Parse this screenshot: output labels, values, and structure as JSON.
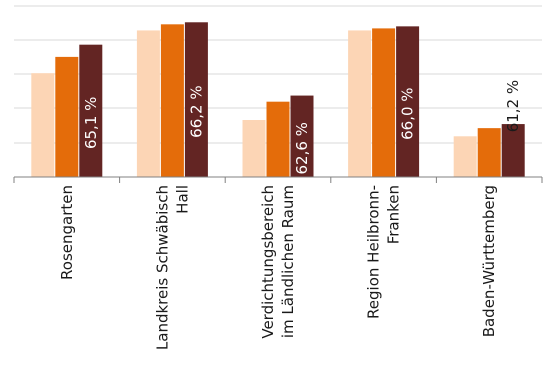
{
  "caption": "",
  "chart_data": {
    "type": "bar",
    "categories": [
      "Rosengarten",
      "Landkreis Schwäbisch Hall",
      "Verdichtungsbereich im Ländlichen Raum",
      "Region Heilbronn-Franken",
      "Baden-Württemberg"
    ],
    "category_lines": [
      [
        "Rosengarten"
      ],
      [
        "Landkreis Schwäbisch",
        "Hall"
      ],
      [
        "Verdichtungsbereich",
        "im Ländlichen Raum"
      ],
      [
        "Region Heilbronn-",
        "Franken"
      ],
      [
        "Baden-Württemberg"
      ]
    ],
    "series": [
      {
        "values": [
          63.7,
          65.8,
          61.4,
          65.8,
          60.6
        ],
        "color": "#fcd5b5"
      },
      {
        "values": [
          64.5,
          66.1,
          62.3,
          65.9,
          61.0
        ],
        "color": "#e46c0a"
      },
      {
        "values": [
          65.1,
          66.2,
          62.6,
          66.0,
          61.2
        ],
        "color": "#632523"
      }
    ],
    "data_labels": [
      "65,1 %",
      "66,2 %",
      "62,6 %",
      "66,0 %",
      "61,2 %"
    ],
    "ylim": [
      58.6,
      67.0
    ],
    "grid": true,
    "legend": "none"
  }
}
